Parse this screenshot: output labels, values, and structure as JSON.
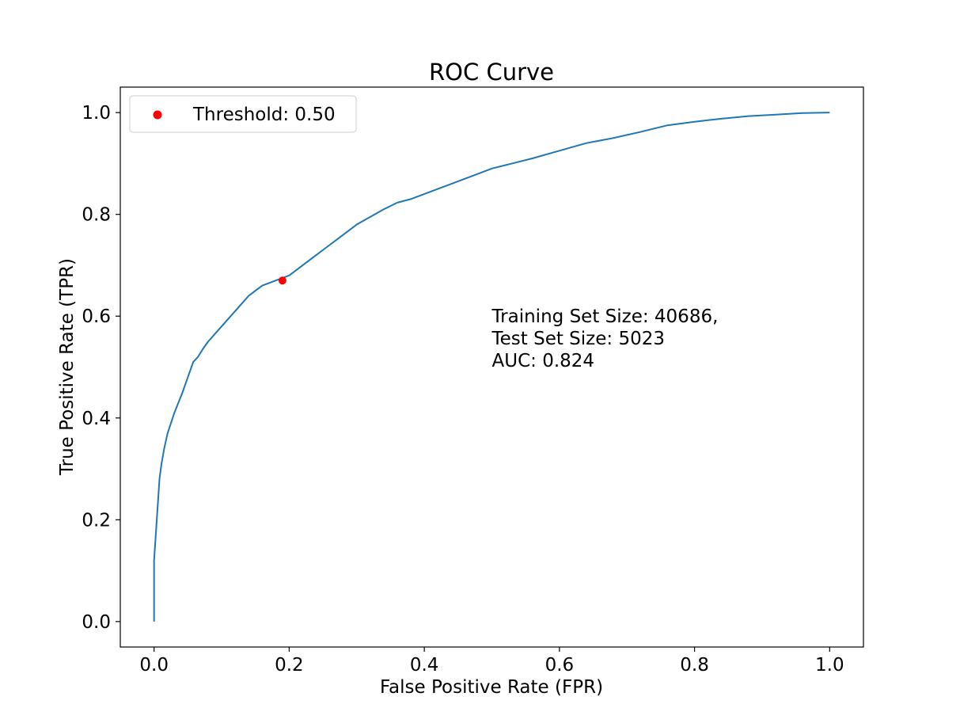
{
  "chart_data": {
    "type": "line",
    "title": "ROC Curve",
    "xlabel": "False Positive Rate (FPR)",
    "ylabel": "True Positive Rate (TPR)",
    "xlim": [
      -0.05,
      1.05
    ],
    "ylim": [
      -0.05,
      1.05
    ],
    "xticks": [
      0.0,
      0.2,
      0.4,
      0.6,
      0.8,
      1.0
    ],
    "xtick_labels": [
      "0.0",
      "0.2",
      "0.4",
      "0.6",
      "0.8",
      "1.0"
    ],
    "yticks": [
      0.0,
      0.2,
      0.4,
      0.6,
      0.8,
      1.0
    ],
    "ytick_labels": [
      "0.0",
      "0.2",
      "0.4",
      "0.6",
      "0.8",
      "1.0"
    ],
    "grid": false,
    "legend_position": "top-left",
    "series": [
      {
        "color": "#1f77b4",
        "x": [
          0.0,
          0.0,
          0.002,
          0.004,
          0.006,
          0.008,
          0.011,
          0.015,
          0.02,
          0.025,
          0.03,
          0.036,
          0.042,
          0.05,
          0.058,
          0.065,
          0.072,
          0.08,
          0.09,
          0.1,
          0.11,
          0.12,
          0.13,
          0.14,
          0.15,
          0.16,
          0.17,
          0.18,
          0.19,
          0.2,
          0.22,
          0.24,
          0.26,
          0.28,
          0.3,
          0.32,
          0.34,
          0.36,
          0.38,
          0.4,
          0.42,
          0.45,
          0.48,
          0.5,
          0.53,
          0.56,
          0.6,
          0.64,
          0.68,
          0.72,
          0.76,
          0.8,
          0.84,
          0.88,
          0.92,
          0.96,
          1.0
        ],
        "y": [
          0.0,
          0.12,
          0.16,
          0.2,
          0.24,
          0.28,
          0.31,
          0.34,
          0.37,
          0.39,
          0.41,
          0.43,
          0.45,
          0.48,
          0.51,
          0.52,
          0.535,
          0.55,
          0.565,
          0.58,
          0.595,
          0.61,
          0.625,
          0.64,
          0.65,
          0.66,
          0.665,
          0.67,
          0.675,
          0.68,
          0.7,
          0.72,
          0.74,
          0.76,
          0.78,
          0.795,
          0.81,
          0.823,
          0.83,
          0.84,
          0.85,
          0.865,
          0.88,
          0.89,
          0.9,
          0.91,
          0.925,
          0.94,
          0.95,
          0.962,
          0.975,
          0.982,
          0.988,
          0.993,
          0.996,
          0.999,
          1.0
        ]
      }
    ],
    "threshold_point": {
      "label": "Threshold: 0.50",
      "x": 0.19,
      "y": 0.67,
      "color": "#ff0000"
    },
    "annotation_lines": [
      "Training Set Size: 40686,",
      "Test Set Size: 5023",
      "AUC: 0.824"
    ],
    "annotation_position": {
      "x": 0.5,
      "y": 0.6
    }
  }
}
